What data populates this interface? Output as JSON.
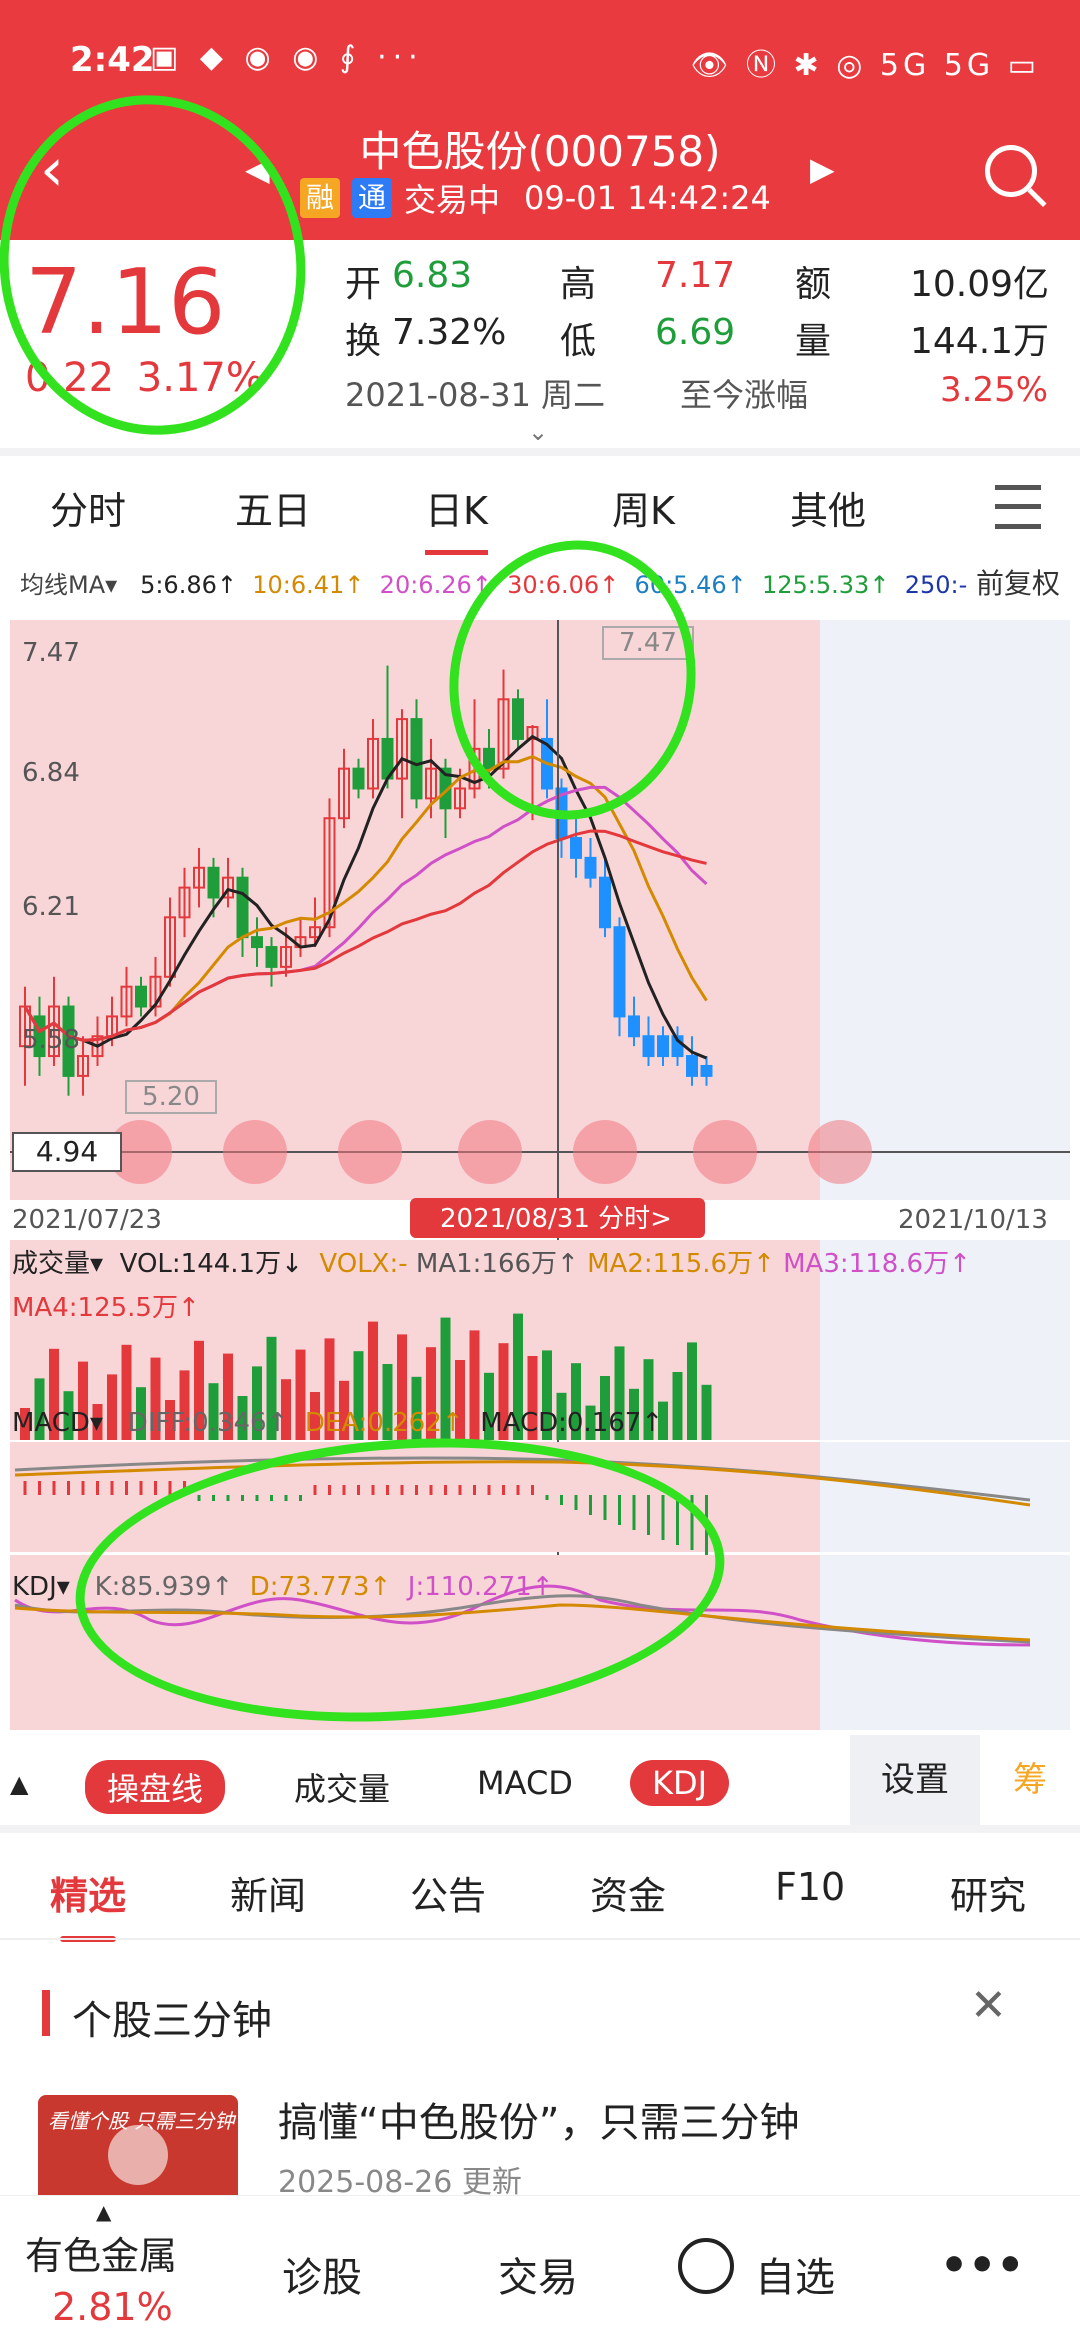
{
  "status_bar": {
    "time": "2:42",
    "app_icons": "▣ ◆ ◉ ◉ ∮ ···",
    "right_icons": "👁 Ⓝ ✱ ◎ 5G 5G ▭"
  },
  "header": {
    "title": "中色股份(000758)",
    "tag1": "融",
    "tag2": "通",
    "status": "交易中",
    "datetime": "09-01 14:42:24",
    "back_icon": "‹",
    "prev_icon": "◀",
    "next_icon": "▶"
  },
  "quote": {
    "price": "7.16",
    "change": "0.22",
    "change_pct": "3.17%",
    "open_label": "开",
    "open": "6.83",
    "high_label": "高",
    "high": "7.17",
    "amount_label": "额",
    "amount": "10.09亿",
    "turnover_label": "换",
    "turnover": "7.32%",
    "low_label": "低",
    "low": "6.69",
    "volume_label": "量",
    "volume": "144.1万",
    "date": "2021-08-31 周二",
    "since_label": "至今涨幅",
    "since": "3.25%"
  },
  "period_tabs": [
    "分时",
    "五日",
    "日K",
    "周K",
    "其他"
  ],
  "ma": {
    "label": "均线MA",
    "ma5": "5:6.86↑",
    "ma10": "10:6.41↑",
    "ma20": "20:6.26↑",
    "ma30": "30:6.06↑",
    "ma60": "60:5.46↑",
    "ma125": "125:5.33↑",
    "ma250": "250:-",
    "adjust": "前复权"
  },
  "kline": {
    "y_labels": [
      "7.47",
      "6.84",
      "6.21",
      "5.58",
      "4.94"
    ],
    "max_tag": "7.47",
    "min_tag": "5.20",
    "cursor_price": "4.94",
    "start_date": "2021/07/23",
    "cursor_date": "2021/08/31 分时>",
    "end_date": "2021/10/13"
  },
  "volume": {
    "label": "成交量",
    "vol": "VOL:144.1万↓",
    "volx": "VOLX:-",
    "ma1": "MA1:166万↑",
    "ma2": "MA2:115.6万↑",
    "ma3": "MA3:118.6万↑",
    "ma4": "MA4:125.5万↑"
  },
  "macd": {
    "label": "MACD",
    "diff": "DIFF:0.346↑",
    "dea": "DEA:0.262↑",
    "macd": "MACD:0.167↑"
  },
  "kdj": {
    "label": "KDJ",
    "k": "K:85.939↑",
    "d": "D:73.773↑",
    "j": "J:110.271↑"
  },
  "indicator_tabs": [
    "操盘线",
    "成交量",
    "MACD",
    "KDJ",
    ""
  ],
  "settings": "设置",
  "chou": "筹",
  "news_tabs": [
    "精选",
    "新闻",
    "公告",
    "资金",
    "F10",
    "研究"
  ],
  "card": {
    "title": "个股三分钟",
    "thumb_text": "看懂个股 只需三分钟",
    "article_title": "搞懂“中色股份”，只需三分钟",
    "article_meta": "2025-08-26 更新"
  },
  "bottom": {
    "sector": "有色金属",
    "sector_pct": "2.81%",
    "diagnose": "诊股",
    "trade": "交易",
    "watch": "自选",
    "more": "•••"
  },
  "colors": {
    "up": "#e3383c",
    "down": "#1e9d3a",
    "header": "#e83a3f",
    "falling_candle": "#1e90ff"
  }
}
